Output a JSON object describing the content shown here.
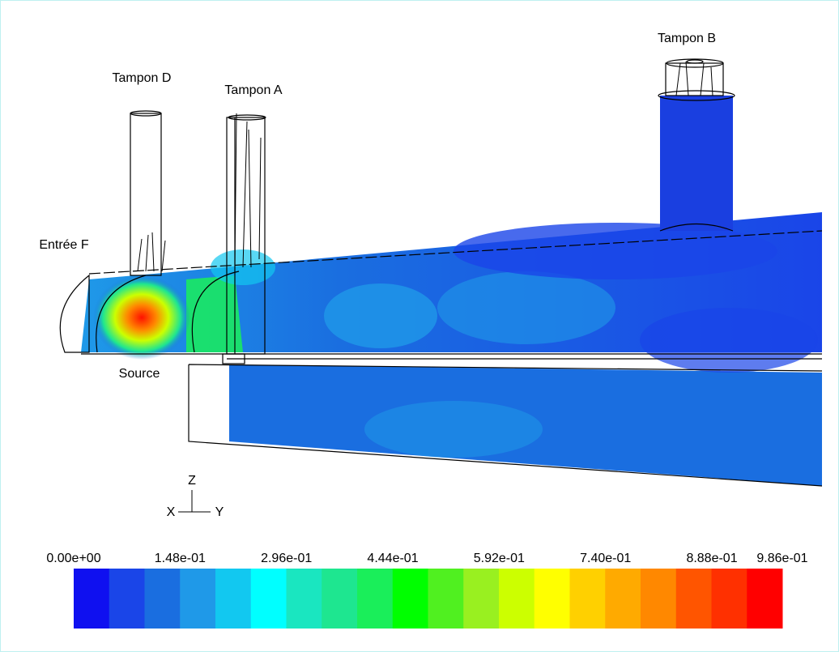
{
  "labels": {
    "tampon_b": "Tampon B",
    "tampon_d": "Tampon D",
    "tampon_a": "Tampon A",
    "entree_f": "Entrée F",
    "source": "Source"
  },
  "axes_triad": {
    "z": "Z",
    "x": "X",
    "y": "Y"
  },
  "colorbar": {
    "range": [
      0,
      0.986
    ],
    "ticks": [
      {
        "value": 0,
        "label": "0.00e+00"
      },
      {
        "value": 0.148,
        "label": "1.48e-01"
      },
      {
        "value": 0.296,
        "label": "2.96e-01"
      },
      {
        "value": 0.444,
        "label": "4.44e-01"
      },
      {
        "value": 0.592,
        "label": "5.92e-01"
      },
      {
        "value": 0.74,
        "label": "7.40e-01"
      },
      {
        "value": 0.888,
        "label": "8.88e-01"
      },
      {
        "value": 0.986,
        "label": "9.86e-01"
      }
    ],
    "colors": [
      "#0f10f0",
      "#1a45e8",
      "#1a6ee0",
      "#1f99e8",
      "#12c8f0",
      "#00ffff",
      "#1ae6c0",
      "#1ee690",
      "#1aee5a",
      "#00ff00",
      "#50f020",
      "#99f020",
      "#ccff00",
      "#ffff00",
      "#ffd000",
      "#ffaa00",
      "#ff8800",
      "#ff5500",
      "#ff3000",
      "#ff0000"
    ]
  }
}
